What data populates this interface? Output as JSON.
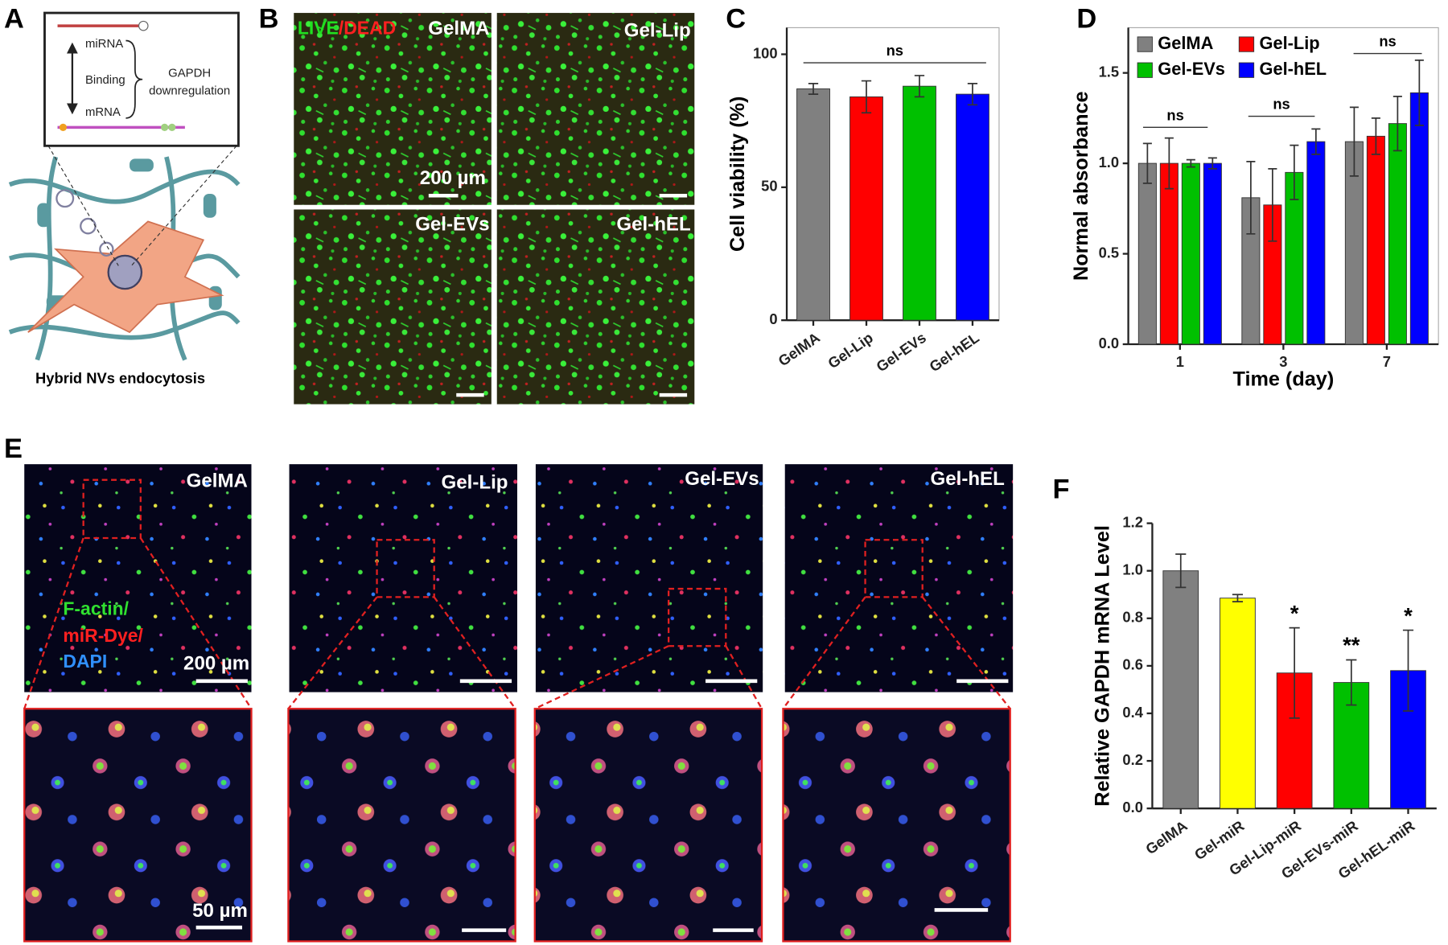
{
  "panel_labels": [
    "A",
    "B",
    "C",
    "D",
    "E",
    "F"
  ],
  "panel_a": {
    "labels": [
      "miRNA",
      "Binding",
      "mRNA",
      "GAPDH",
      "downregulation"
    ],
    "caption": "Hybrid NVs endocytosis"
  },
  "panel_b": {
    "stain": [
      "LIVE",
      "/DEAD"
    ],
    "groups": [
      "GelMA",
      "Gel-Lip",
      "Gel-EVs",
      "Gel-hEL"
    ],
    "scale_bar": "200 µm"
  },
  "panel_e": {
    "groups": [
      "GelMA",
      "Gel-Lip",
      "Gel-EVs",
      "Gel-hEL"
    ],
    "stains": [
      "F-actin/",
      "miR-Dye/",
      "DAPI"
    ],
    "scale_bars": [
      "200 µm",
      "50 µm"
    ]
  },
  "chart_data": [
    {
      "type": "bar",
      "ylabel": "Cell viability (%)",
      "categories": [
        "GelMA",
        "Gel-Lip",
        "Gel-EVs",
        "Gel-hEL"
      ],
      "values": [
        87,
        84,
        88,
        85
      ],
      "errors": [
        2,
        6,
        4,
        4
      ],
      "colors": [
        "#808080",
        "#ff0000",
        "#00c000",
        "#0000ff"
      ],
      "ylim": [
        0,
        110
      ],
      "yticks": [
        0,
        50,
        100
      ],
      "frame": true,
      "annotations": [
        "ns"
      ]
    },
    {
      "type": "bar",
      "xlabel": "Time (day)",
      "ylabel": "Normal absorbance",
      "categories": [
        "1",
        "3",
        "7"
      ],
      "series": [
        {
          "name": "GelMA",
          "color": "#808080",
          "values": [
            1.0,
            0.81,
            1.12
          ],
          "errors": [
            0.11,
            0.2,
            0.19
          ]
        },
        {
          "name": "Gel-Lip",
          "color": "#ff0000",
          "values": [
            1.0,
            0.77,
            1.15
          ],
          "errors": [
            0.14,
            0.2,
            0.1
          ]
        },
        {
          "name": "Gel-EVs",
          "color": "#00c000",
          "values": [
            1.0,
            0.95,
            1.22
          ],
          "errors": [
            0.02,
            0.15,
            0.15
          ]
        },
        {
          "name": "Gel-hEL",
          "color": "#0000ff",
          "values": [
            1.0,
            1.12,
            1.39
          ],
          "errors": [
            0.03,
            0.07,
            0.18
          ]
        }
      ],
      "ylim": [
        0,
        1.75
      ],
      "yticks": [
        {
          "value": 0,
          "label": "0.0"
        },
        0.5,
        {
          "value": 1,
          "label": "1.0"
        },
        1.5
      ],
      "legend": "top-left",
      "frame": true,
      "annotations": [
        "ns",
        "ns",
        "ns"
      ]
    },
    {
      "type": "bar",
      "ylabel": "Relative GAPDH mRNA Level",
      "categories": [
        "GelMA",
        "Gel-miR",
        "Gel-Lip-miR",
        "Gel-EVs-miR",
        "Gel-hEL-miR"
      ],
      "values": [
        1.0,
        0.885,
        0.57,
        0.53,
        0.58
      ],
      "errors": [
        0.07,
        0.015,
        0.19,
        0.095,
        0.17
      ],
      "colors": [
        "#808080",
        "#ffff00",
        "#ff0000",
        "#00c000",
        "#0000ff"
      ],
      "significance": [
        null,
        null,
        "*",
        "**",
        "*"
      ],
      "ylim": [
        0,
        1.2
      ],
      "yticks": [
        {
          "value": 0,
          "label": "0.0"
        },
        0.2,
        0.4,
        0.6,
        0.8,
        {
          "value": 1,
          "label": "1.0"
        },
        1.2
      ]
    }
  ]
}
